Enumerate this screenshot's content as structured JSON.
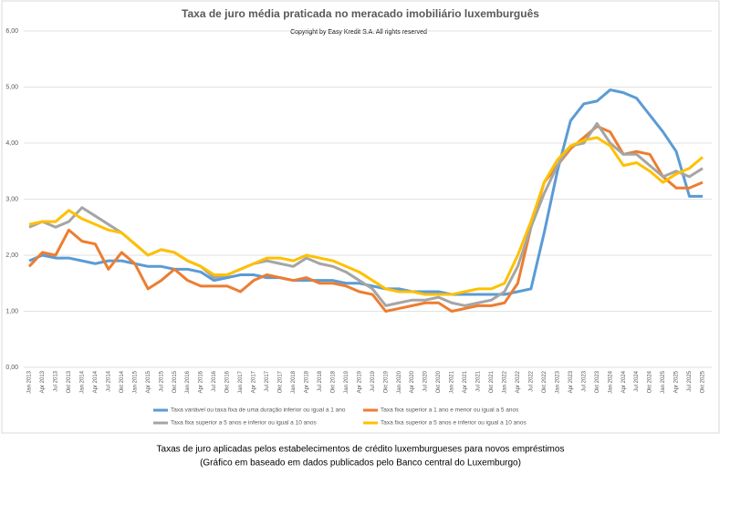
{
  "chart_data": {
    "type": "line",
    "title": "Taxa de juro média praticada no meracado imobiliário luxemburguês",
    "subtitle": "Copyright by Easy Kredit S.A. All rights reserved",
    "categories": [
      "Jan 2013",
      "Apr 2013",
      "Jul 2013",
      "Okt 2013",
      "Jan 2014",
      "Apr 2014",
      "Jul 2014",
      "Okt 2014",
      "Jan 2015",
      "Apr 2015",
      "Jul 2015",
      "Okt 2015",
      "Jan 2016",
      "Apr 2016",
      "Jul 2016",
      "Okt 2016",
      "Jan 2017",
      "Apr 2017",
      "Jul 2017",
      "Okt 2017",
      "Jan 2018",
      "Apr 2018",
      "Jul 2018",
      "Okt 2018",
      "Jan 2019",
      "Apr 2019",
      "Jul 2019",
      "Okt 2019",
      "Jan 2020",
      "Apr 2020",
      "Jul 2020",
      "Okt 2020",
      "Jan 2021",
      "Apr 2021",
      "Jul 2021",
      "Okt 2021",
      "Jan 2022",
      "Apr 2022",
      "Jul 2022",
      "Okt 2022",
      "Jan 2023",
      "Apr 2023",
      "Jul 2023",
      "Okt 2023",
      "Jan 2024",
      "Apr 2024",
      "Jul 2024",
      "Okt 2024",
      "Jan 2025",
      "Apr 2025",
      "Jul 2025",
      "Okt 2025"
    ],
    "series": [
      {
        "name": "Taxa variável ou taxa fixa de uma duração inferior ou igual a 1 ano",
        "color": "#5b9bd5",
        "values": [
          1.9,
          2.0,
          1.95,
          1.95,
          1.9,
          1.85,
          1.9,
          1.9,
          1.85,
          1.8,
          1.8,
          1.75,
          1.75,
          1.7,
          1.55,
          1.6,
          1.65,
          1.65,
          1.6,
          1.6,
          1.55,
          1.55,
          1.55,
          1.55,
          1.5,
          1.5,
          1.45,
          1.4,
          1.4,
          1.35,
          1.35,
          1.35,
          1.3,
          1.3,
          1.3,
          1.3,
          1.3,
          1.35,
          1.4,
          2.4,
          3.5,
          4.4,
          4.7,
          4.75,
          4.95,
          4.9,
          4.8,
          4.5,
          4.2,
          3.85,
          3.05,
          3.05
        ]
      },
      {
        "name": "Taxa fixa superior a 1 ano e menor ou igual a 5 anos",
        "color": "#ed7d31",
        "values": [
          1.8,
          2.05,
          2.0,
          2.45,
          2.25,
          2.2,
          1.75,
          2.05,
          1.85,
          1.4,
          1.55,
          1.75,
          1.55,
          1.45,
          1.45,
          1.45,
          1.35,
          1.55,
          1.65,
          1.6,
          1.55,
          1.6,
          1.5,
          1.5,
          1.45,
          1.35,
          1.3,
          1.0,
          1.05,
          1.1,
          1.15,
          1.15,
          1.0,
          1.05,
          1.1,
          1.1,
          1.15,
          1.5,
          2.5,
          3.3,
          3.6,
          3.9,
          4.1,
          4.3,
          4.2,
          3.8,
          3.85,
          3.8,
          3.4,
          3.2,
          3.2,
          3.3
        ]
      },
      {
        "name": "Taxa fixa superior a 5 anos e inferior ou igual a 10 anos",
        "color": "#a5a5a5",
        "values": [
          2.5,
          2.6,
          2.5,
          2.6,
          2.85,
          2.7,
          2.55,
          2.4,
          2.2,
          2.0,
          2.1,
          2.05,
          1.9,
          1.8,
          1.6,
          1.65,
          1.75,
          1.85,
          1.9,
          1.85,
          1.8,
          1.95,
          1.85,
          1.8,
          1.7,
          1.55,
          1.4,
          1.1,
          1.15,
          1.2,
          1.2,
          1.25,
          1.15,
          1.1,
          1.15,
          1.2,
          1.35,
          1.8,
          2.5,
          3.1,
          3.6,
          3.95,
          4.0,
          4.35,
          4.0,
          3.8,
          3.8,
          3.6,
          3.4,
          3.5,
          3.4,
          3.55
        ]
      },
      {
        "name": "Taxa fixa superior a 5 anos e inferior ou igual a 10 anos",
        "color": "#ffc000",
        "values": [
          2.55,
          2.6,
          2.6,
          2.8,
          2.65,
          2.55,
          2.45,
          2.4,
          2.2,
          2.0,
          2.1,
          2.05,
          1.9,
          1.8,
          1.65,
          1.65,
          1.75,
          1.85,
          1.95,
          1.95,
          1.9,
          2.0,
          1.95,
          1.9,
          1.8,
          1.7,
          1.55,
          1.4,
          1.35,
          1.35,
          1.3,
          1.3,
          1.3,
          1.35,
          1.4,
          1.4,
          1.5,
          2.0,
          2.6,
          3.3,
          3.7,
          3.95,
          4.05,
          4.1,
          3.95,
          3.6,
          3.65,
          3.5,
          3.3,
          3.45,
          3.55,
          3.75
        ]
      }
    ],
    "ylim": [
      0,
      6
    ],
    "yticks": [
      {
        "value": 0,
        "label": "0,00"
      },
      {
        "value": 1,
        "label": "1,00"
      },
      {
        "value": 2,
        "label": "2,00"
      },
      {
        "value": 3,
        "label": "3,00"
      },
      {
        "value": 4,
        "label": "4,00"
      },
      {
        "value": 5,
        "label": "5,00"
      },
      {
        "value": 6,
        "label": "6,00"
      }
    ],
    "grid": true,
    "legend": "bottom"
  },
  "caption": [
    "Taxas de juro aplicadas pelos estabelecimentos de crédito luxemburgueses para novos empréstimos",
    "(Gráfico em baseado em dados publicados pelo Banco central do Luxemburgo)"
  ]
}
